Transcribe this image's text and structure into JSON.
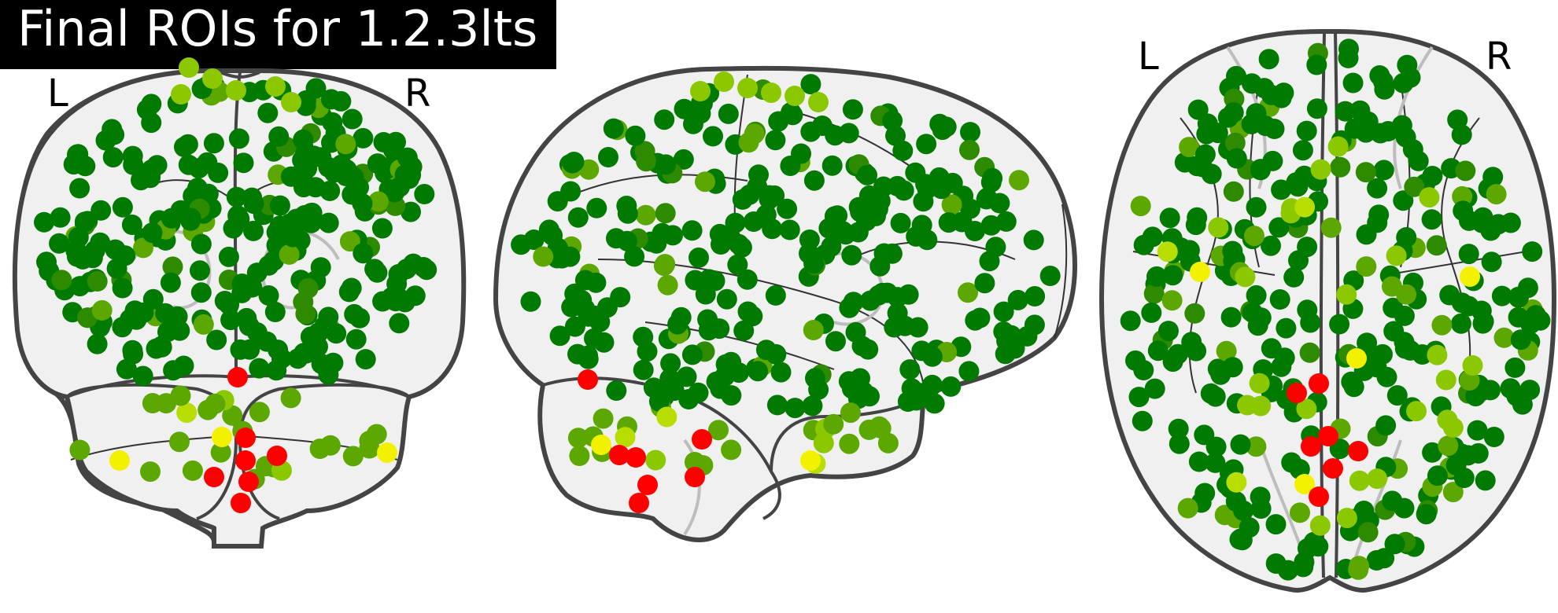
{
  "title": "Final ROIs for 1.2.3lts",
  "views": {
    "coronal": {
      "left_label": "L",
      "right_label": "R"
    },
    "axial": {
      "left_label": "L",
      "right_label": "R"
    }
  },
  "colors": {
    "dark_green": "#007a00",
    "green": "#2e8b00",
    "mid_green": "#5ca800",
    "light_green": "#8cc800",
    "yellow_green": "#b8dd00",
    "yellow": "#f2f200",
    "red": "#ff0000",
    "outline": "#444444",
    "brain_fill": "#f0f0f0"
  }
}
